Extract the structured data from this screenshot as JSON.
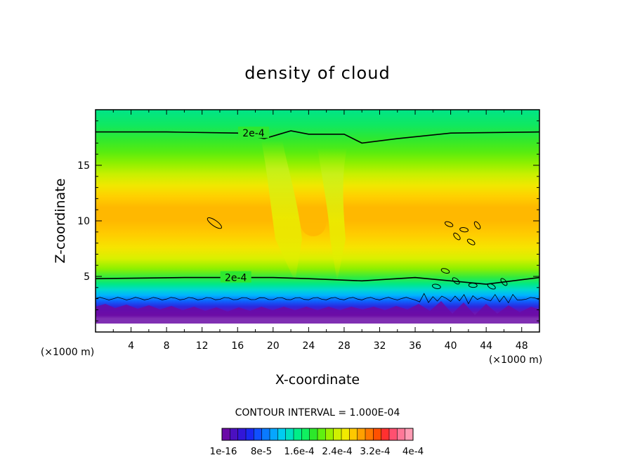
{
  "chart_data": {
    "type": "contour",
    "title": "density of cloud",
    "xlabel": "X-coordinate",
    "ylabel": "Z-coordinate",
    "x_unit_left": "(×1000 m)",
    "x_unit_right": "(×1000 m)",
    "xlim": [
      0,
      50
    ],
    "ylim": [
      0,
      20
    ],
    "x_ticks": [
      "4",
      "8",
      "12",
      "16",
      "20",
      "24",
      "28",
      "32",
      "36",
      "40",
      "44",
      "48"
    ],
    "y_ticks": [
      "5",
      "10",
      "15"
    ],
    "contour_interval_text": "CONTOUR INTERVAL = 1.000E-04",
    "contour_labels": [
      "2e-4",
      "2e-4"
    ],
    "upper_contour_z": [
      [
        0,
        18.0
      ],
      [
        8,
        18.0
      ],
      [
        16,
        17.9
      ],
      [
        19,
        17.4
      ],
      [
        20.3,
        17.7
      ],
      [
        22,
        18.1
      ],
      [
        24,
        17.8
      ],
      [
        28,
        17.8
      ],
      [
        30,
        17.0
      ],
      [
        34,
        17.4
      ],
      [
        40,
        17.9
      ],
      [
        50,
        18.0
      ]
    ],
    "lower_contour_z": [
      [
        0,
        4.8
      ],
      [
        10,
        4.9
      ],
      [
        20,
        4.9
      ],
      [
        24,
        4.8
      ],
      [
        30,
        4.6
      ],
      [
        36,
        4.9
      ],
      [
        40,
        4.6
      ],
      [
        44,
        4.3
      ],
      [
        48,
        4.7
      ],
      [
        50,
        4.9
      ]
    ],
    "colorbar": {
      "labels": [
        "1e-16",
        "8e-5",
        "1.6e-4",
        "2.4e-4",
        "3.2e-4",
        "4e-4"
      ],
      "colors": [
        "#6a0aa6",
        "#4b10c0",
        "#3216d8",
        "#1a28f0",
        "#1050ff",
        "#0a7aff",
        "#06a6ff",
        "#00ccf0",
        "#00e0c0",
        "#00ee88",
        "#10f060",
        "#2de82a",
        "#60f010",
        "#9cf000",
        "#d0f000",
        "#f2ea00",
        "#ffc800",
        "#ffa000",
        "#ff7800",
        "#ff5000",
        "#ff3030",
        "#ff5070",
        "#ff7898",
        "#ff9cb4"
      ]
    }
  }
}
